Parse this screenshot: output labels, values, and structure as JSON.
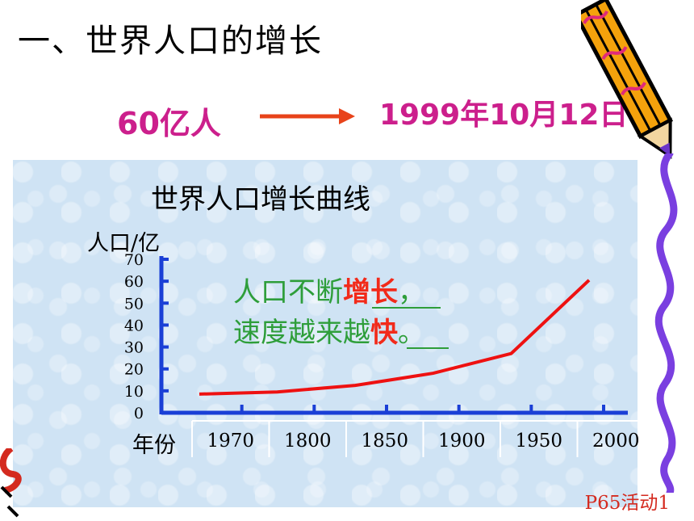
{
  "slide": {
    "title": "一、世界人口的增长",
    "fact_left": "60亿人",
    "fact_right": "1999年10月12日",
    "reference": "P65活动1"
  },
  "colors": {
    "accent_magenta": "#cc1f8c",
    "arrow": "#e8431a",
    "axis": "#1a3fd6",
    "curve": "#ee1111",
    "note_green": "#2e9e3a",
    "note_red": "#f22a1a",
    "panel_bg": "#cfe3f4"
  },
  "chart_data": {
    "type": "line",
    "title": "世界人口增长曲线",
    "ylabel": "人口/亿",
    "xlabel": "年份",
    "yticks": [
      "0",
      "10",
      "20",
      "30",
      "40",
      "50",
      "60",
      "70"
    ],
    "ylim": [
      0,
      70
    ],
    "xticks": [
      "1970",
      "1800",
      "1850",
      "1900",
      "1950",
      "2000"
    ],
    "series": [
      {
        "values": [
          8.5,
          9.5,
          12.5,
          18,
          27,
          60.5
        ]
      }
    ],
    "annotation": {
      "line1_prefix": "人口不断",
      "line1_blank": "增长",
      "line1_suffix": "，",
      "line2_prefix": "速度越来越",
      "line2_blank": "快",
      "line2_suffix": "。"
    },
    "grid": false
  }
}
